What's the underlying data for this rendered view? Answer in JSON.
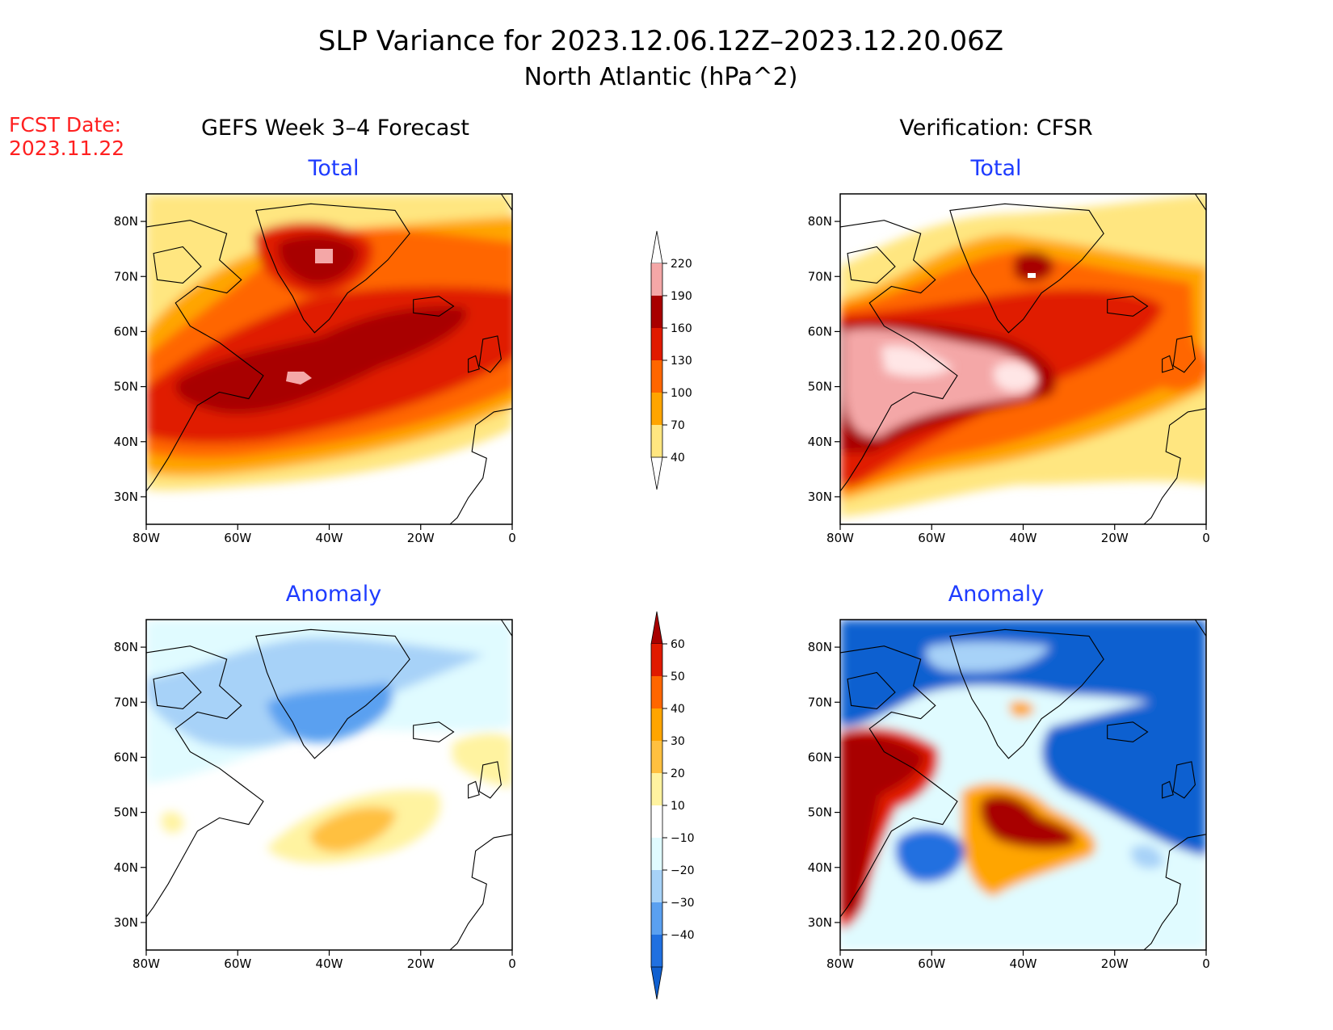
{
  "title": {
    "line1": "SLP Variance for 2023.12.06.12Z–2023.12.20.06Z",
    "line2": "North Atlantic (hPa^2)"
  },
  "fcst": {
    "label": "FCST Date:",
    "date": "2023.11.22"
  },
  "columns": {
    "left": "GEFS Week 3–4 Forecast",
    "right": "Verification: CFSR"
  },
  "row_titles": {
    "top": "Total",
    "bottom": "Anomaly"
  },
  "axes": {
    "x_ticks": [
      "80W",
      "60W",
      "40W",
      "20W",
      "0"
    ],
    "y_ticks": [
      "80N",
      "70N",
      "60N",
      "50N",
      "40N",
      "30N"
    ],
    "lon_range": [
      -80,
      0
    ],
    "lat_range": [
      25,
      85
    ]
  },
  "colors": {
    "title_blue": "#1e3cff",
    "fcst_red": "#ff2020"
  },
  "colorbars": {
    "total": {
      "labels": [
        "220",
        "190",
        "160",
        "130",
        "100",
        "70",
        "40"
      ],
      "colors": [
        "#ffffff",
        "#f4a7a7",
        "#a80000",
        "#e01a00",
        "#ff6600",
        "#ffa500",
        "#ffe680"
      ]
    },
    "anomaly": {
      "labels": [
        "60",
        "50",
        "40",
        "30",
        "20",
        "10",
        "−10",
        "−20",
        "−30",
        "−40"
      ],
      "colors": [
        "#a80000",
        "#e01a00",
        "#ff6600",
        "#ffa500",
        "#ffc040",
        "#fff3a0",
        "#ffffff",
        "#e0fbff",
        "#a7d2f8",
        "#5aa0f0",
        "#2070e0",
        "#1060d0"
      ]
    }
  }
}
